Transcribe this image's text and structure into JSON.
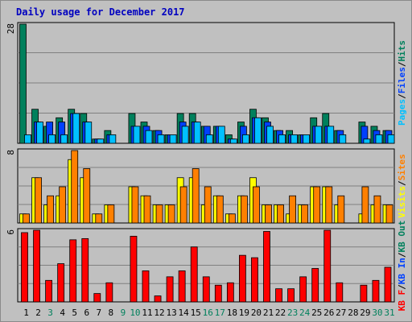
{
  "title": "Daily usage for December 2017",
  "colors": {
    "background": "#c0c0c0",
    "hits": "#00805c",
    "files": "#0040ff",
    "pages": "#00c0ff",
    "visits": "#ffff00",
    "sites": "#ff8000",
    "kbout": "#00805c",
    "kbin": "#0040ff",
    "kbf": "#ff0000",
    "weekday_label": "#000000",
    "weekend_label": "#00805c"
  },
  "chart_data": [
    {
      "type": "bar",
      "panel": "hits-files-pages",
      "title": "Daily usage for December 2017",
      "ymax_label": "28",
      "ylim": [
        0,
        28
      ],
      "right_labels": [
        "Pages",
        "Files",
        "Hits"
      ],
      "categories": [
        "1",
        "2",
        "3",
        "4",
        "5",
        "6",
        "7",
        "8",
        "9",
        "10",
        "11",
        "12",
        "13",
        "14",
        "15",
        "16",
        "17",
        "18",
        "19",
        "20",
        "21",
        "22",
        "23",
        "24",
        "25",
        "26",
        "27",
        "28",
        "29",
        "30",
        "31"
      ],
      "series": [
        {
          "name": "Hits",
          "values": [
            28,
            8,
            4,
            6,
            8,
            7,
            1,
            3,
            0,
            7,
            5,
            3,
            2,
            7,
            7,
            4,
            4,
            2,
            5,
            8,
            6,
            3,
            3,
            2,
            6,
            7,
            3,
            0,
            5,
            4,
            3
          ]
        },
        {
          "name": "Files",
          "values": [
            0,
            5,
            5,
            5,
            7,
            5,
            1,
            2,
            0,
            4,
            4,
            3,
            2,
            5,
            5,
            4,
            4,
            1,
            4,
            6,
            5,
            3,
            2,
            2,
            4,
            4,
            3,
            0,
            4,
            3,
            3
          ]
        },
        {
          "name": "Pages",
          "values": [
            2,
            5,
            2,
            2,
            7,
            5,
            1,
            2,
            0,
            4,
            3,
            2,
            2,
            4,
            5,
            2,
            4,
            1,
            2,
            6,
            4,
            2,
            2,
            2,
            4,
            4,
            2,
            0,
            1,
            2,
            2
          ]
        }
      ]
    },
    {
      "type": "bar",
      "panel": "visits-sites",
      "ymax_label": "8",
      "ylim": [
        0,
        8
      ],
      "right_labels": [
        "Visits",
        "Sites"
      ],
      "categories": [
        "1",
        "2",
        "3",
        "4",
        "5",
        "6",
        "7",
        "8",
        "9",
        "10",
        "11",
        "12",
        "13",
        "14",
        "15",
        "16",
        "17",
        "18",
        "19",
        "20",
        "21",
        "22",
        "23",
        "24",
        "25",
        "26",
        "27",
        "28",
        "29",
        "30",
        "31"
      ],
      "series": [
        {
          "name": "Visits",
          "values": [
            1,
            5,
            2,
            3,
            7,
            5,
            1,
            2,
            0,
            4,
            3,
            2,
            2,
            5,
            5,
            2,
            3,
            1,
            3,
            5,
            2,
            2,
            1,
            2,
            4,
            4,
            2,
            0,
            1,
            2,
            2
          ]
        },
        {
          "name": "Sites",
          "values": [
            1,
            5,
            3,
            4,
            8,
            6,
            1,
            2,
            0,
            4,
            3,
            2,
            2,
            4,
            6,
            4,
            3,
            1,
            3,
            4,
            2,
            2,
            3,
            2,
            4,
            4,
            3,
            0,
            4,
            3,
            2
          ]
        }
      ]
    },
    {
      "type": "bar",
      "panel": "kbytes",
      "ymax_label": "6",
      "ylim": [
        0,
        6
      ],
      "right_labels": [
        "KB F",
        "KB In",
        "KB Out"
      ],
      "categories": [
        "1",
        "2",
        "3",
        "4",
        "5",
        "6",
        "7",
        "8",
        "9",
        "10",
        "11",
        "12",
        "13",
        "14",
        "15",
        "16",
        "17",
        "18",
        "19",
        "20",
        "21",
        "22",
        "23",
        "24",
        "25",
        "26",
        "27",
        "28",
        "29",
        "30",
        "31"
      ],
      "series": [
        {
          "name": "KB F",
          "values": [
            5.8,
            6,
            1.8,
            3.2,
            5.2,
            5.3,
            0.7,
            1.6,
            0,
            5.5,
            2.6,
            0.5,
            2.1,
            2.6,
            4.6,
            2.1,
            1.4,
            1.6,
            3.9,
            3.7,
            5.9,
            1.1,
            1.1,
            2.1,
            2.8,
            6,
            1.6,
            0,
            1.4,
            1.8,
            2.9
          ]
        }
      ]
    }
  ],
  "x_labels": [
    {
      "text": "1",
      "weekend": false
    },
    {
      "text": "2",
      "weekend": false
    },
    {
      "text": "3",
      "weekend": true
    },
    {
      "text": "4",
      "weekend": false
    },
    {
      "text": "5",
      "weekend": false
    },
    {
      "text": "6",
      "weekend": false
    },
    {
      "text": "7",
      "weekend": false
    },
    {
      "text": "8",
      "weekend": false
    },
    {
      "text": "9",
      "weekend": true
    },
    {
      "text": "10",
      "weekend": true
    },
    {
      "text": "11",
      "weekend": false
    },
    {
      "text": "12",
      "weekend": false
    },
    {
      "text": "13",
      "weekend": false
    },
    {
      "text": "14",
      "weekend": false
    },
    {
      "text": "15",
      "weekend": false
    },
    {
      "text": "16",
      "weekend": true
    },
    {
      "text": "17",
      "weekend": true
    },
    {
      "text": "18",
      "weekend": false
    },
    {
      "text": "19",
      "weekend": false
    },
    {
      "text": "20",
      "weekend": false
    },
    {
      "text": "21",
      "weekend": false
    },
    {
      "text": "22",
      "weekend": false
    },
    {
      "text": "23",
      "weekend": true
    },
    {
      "text": "24",
      "weekend": true
    },
    {
      "text": "25",
      "weekend": false
    },
    {
      "text": "26",
      "weekend": false
    },
    {
      "text": "27",
      "weekend": false
    },
    {
      "text": "28",
      "weekend": false
    },
    {
      "text": "29",
      "weekend": false
    },
    {
      "text": "30",
      "weekend": true
    },
    {
      "text": "31",
      "weekend": true
    }
  ]
}
